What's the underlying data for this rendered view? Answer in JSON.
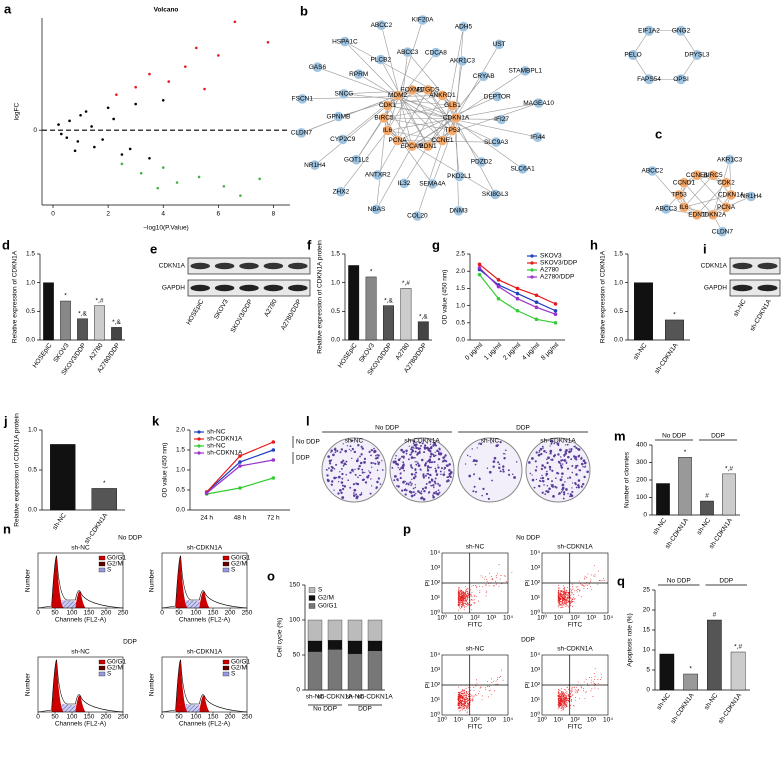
{
  "chart_data": [
    {
      "type": "scatter",
      "panel": "a",
      "title": "Volcano",
      "xlabel": "−log10(P.Value)",
      "ylabel": "logFC",
      "xlim": [
        -0.4,
        8.6
      ],
      "xticks": [
        0,
        2,
        4,
        6,
        8
      ],
      "ylim": [
        -4,
        6
      ],
      "yticks": [
        0
      ],
      "hline": 0,
      "series": [
        {
          "color": "#000000",
          "x": [
            0.2,
            0.5,
            1,
            1.5,
            2,
            2.5,
            3,
            0.8,
            1.2,
            3.5,
            4,
            1.8,
            2.2,
            0.3,
            2.8,
            0.6,
            1.4,
            0.9
          ],
          "values": [
            0.3,
            -0.4,
            0.8,
            -0.9,
            1.2,
            -1.3,
            1.4,
            -1.1,
            1.0,
            -1.5,
            1.6,
            -0.5,
            0.6,
            -0.2,
            -1.0,
            0.5,
            0.2,
            -0.6
          ]
        },
        {
          "color": "#e41a1c",
          "x": [
            3,
            3.5,
            4.2,
            4.8,
            5.5,
            6,
            6.6,
            7.8,
            2.3,
            5.2
          ],
          "values": [
            2.3,
            3.0,
            2.6,
            3.4,
            2.2,
            4.0,
            5.8,
            4.7,
            1.9,
            4.4
          ]
        },
        {
          "color": "#4daf4a",
          "x": [
            2.5,
            3.2,
            4,
            4.5,
            5.3,
            6.2,
            6.8,
            7.5,
            3.8
          ],
          "values": [
            -1.8,
            -2.3,
            -2.0,
            -2.8,
            -2.5,
            -3.0,
            -3.5,
            -2.6,
            -3.1
          ]
        }
      ]
    },
    {
      "type": "bar",
      "panel": "d",
      "ylabel": "Relative expression of CDKN1A",
      "categories": [
        "HOSEpiC",
        "SKOV3",
        "SKOV3/DDP",
        "A2780",
        "A2780/DDP"
      ],
      "values": [
        1.0,
        0.68,
        0.37,
        0.6,
        0.22
      ],
      "annotations": [
        null,
        "*",
        "*,&",
        "*,#",
        "*,&"
      ],
      "colors": [
        "#111111",
        "#888888",
        "#555555",
        "#cccccc",
        "#444444"
      ],
      "ylim": [
        0,
        1.5
      ],
      "yticks": [
        {
          "value": 0,
          "label": "0.0"
        },
        {
          "value": 0.5,
          "label": "0.5"
        },
        {
          "value": 1,
          "label": "1.0"
        },
        {
          "value": 1.5,
          "label": "1.5"
        }
      ]
    },
    {
      "type": "bar",
      "panel": "f",
      "ylabel": "Relative expression of CDKN1A protein",
      "categories": [
        "HOSEpiC",
        "SKOV3",
        "SKOV3/DDP",
        "A2780",
        "A2780/DDP"
      ],
      "values": [
        1.3,
        1.1,
        0.6,
        0.9,
        0.32
      ],
      "annotations": [
        null,
        "*",
        "*,&",
        "*,#",
        "*,&"
      ],
      "colors": [
        "#111111",
        "#888888",
        "#555555",
        "#cccccc",
        "#444444"
      ],
      "ylim": [
        0,
        1.5
      ],
      "yticks": [
        {
          "value": 0,
          "label": "0.0"
        },
        {
          "value": 0.5,
          "label": "0.5"
        },
        {
          "value": 1,
          "label": "1.0"
        },
        {
          "value": 1.5,
          "label": "1.5"
        }
      ]
    },
    {
      "type": "line",
      "panel": "g",
      "ylabel": "OD value (450 nm)",
      "legend": "upper right",
      "categories": [
        "0 μg/ml",
        "1 μg/ml",
        "2 μg/ml",
        "4 μg/ml",
        "8 μg/ml"
      ],
      "series": [
        {
          "name": "SKOV3",
          "color": "#1f3fbf",
          "values": [
            2.05,
            1.6,
            1.35,
            1.1,
            0.85
          ]
        },
        {
          "name": "SKOV3/DDP",
          "color": "#e41a1c",
          "values": [
            2.2,
            1.75,
            1.5,
            1.3,
            1.05
          ]
        },
        {
          "name": "A2780",
          "color": "#33cc33",
          "values": [
            1.9,
            1.2,
            0.85,
            0.6,
            0.5
          ]
        },
        {
          "name": "A2780/DDP",
          "color": "#9933cc",
          "values": [
            2.1,
            1.55,
            1.2,
            0.95,
            0.75
          ]
        }
      ],
      "ylim": [
        0,
        2.5
      ],
      "yticks": [
        {
          "value": 0,
          "label": "0.0"
        },
        {
          "value": 0.5,
          "label": "0.5"
        },
        {
          "value": 1,
          "label": "1.0"
        },
        {
          "value": 1.5,
          "label": "1.5"
        },
        {
          "value": 2,
          "label": "2.0"
        },
        {
          "value": 2.5,
          "label": "2.5"
        }
      ]
    },
    {
      "type": "bar",
      "panel": "h",
      "ylabel": "Relative expression of CDKN1A",
      "categories": [
        "sh-NC",
        "sh-CDKN1A"
      ],
      "values": [
        1.0,
        0.35
      ],
      "annotations": [
        null,
        "*"
      ],
      "colors": [
        "#111111",
        "#555555"
      ],
      "ylim": [
        0,
        1.5
      ],
      "yticks": [
        {
          "value": 0,
          "label": "0.0"
        },
        {
          "value": 0.5,
          "label": "0.5"
        },
        {
          "value": 1,
          "label": "1.0"
        },
        {
          "value": 1.5,
          "label": "1.5"
        }
      ]
    },
    {
      "type": "bar",
      "panel": "j",
      "ylabel": "Relative expression of CDKN1A protein",
      "categories": [
        "sh-NC",
        "sh-CDKN1A"
      ],
      "values": [
        0.82,
        0.27
      ],
      "annotations": [
        null,
        "*"
      ],
      "colors": [
        "#111111",
        "#555555"
      ],
      "ylim": [
        0,
        1.0
      ],
      "yticks": [
        {
          "value": 0,
          "label": "0.0"
        },
        {
          "value": 0.5,
          "label": "0.5"
        },
        {
          "value": 1,
          "label": "1.0"
        }
      ]
    },
    {
      "type": "line",
      "panel": "k",
      "ylabel": "OD value (450 nm)",
      "legend": "upper left",
      "categories": [
        "24 h",
        "48 h",
        "72 h"
      ],
      "groups": [
        "No DDP",
        "DDP"
      ],
      "group_position": "right",
      "series": [
        {
          "name": "sh-NC",
          "color": "#1f3fbf",
          "values": [
            0.45,
            1.2,
            1.5
          ]
        },
        {
          "name": "sh-CDKN1A",
          "color": "#e41a1c",
          "values": [
            0.45,
            1.35,
            1.7
          ]
        },
        {
          "name": "sh-NC",
          "color": "#33cc33",
          "values": [
            0.4,
            0.55,
            0.8
          ]
        },
        {
          "name": "sh-CDKN1A",
          "color": "#9933cc",
          "values": [
            0.42,
            1.1,
            1.25
          ]
        }
      ],
      "ylim": [
        0,
        2
      ],
      "yticks": [
        {
          "value": 0,
          "label": "0.0"
        },
        {
          "value": 0.5,
          "label": "0.5"
        },
        {
          "value": 1,
          "label": "1.0"
        },
        {
          "value": 1.5,
          "label": "1.5"
        },
        {
          "value": 2,
          "label": "2.0"
        }
      ]
    },
    {
      "type": "bar",
      "panel": "m",
      "ylabel": "Number of clonnies",
      "categories": [
        "sh-NC",
        "sh-CDKN1A",
        "sh-NC",
        "sh-CDKN1A"
      ],
      "values": [
        180,
        330,
        80,
        235
      ],
      "annotations": [
        null,
        "*",
        "#",
        "*,#"
      ],
      "colors": [
        "#111111",
        "#999999",
        "#555555",
        "#cccccc"
      ],
      "groups": [
        "No DDP",
        "DDP"
      ],
      "group_position": "top",
      "ylim": [
        0,
        400
      ],
      "yticks": [
        0,
        100,
        200,
        300,
        400
      ]
    },
    {
      "type": "stacked_bar",
      "panel": "o",
      "ylabel": "Cell cycle (%)",
      "categories": [
        "sh-NC",
        "sh-CDKN1A",
        "sh-NC",
        "sh-CDKN1A"
      ],
      "groups": [
        "No DDP",
        "DDP"
      ],
      "group_position": "bottom",
      "series": [
        {
          "name": "G0/G1",
          "color": "#777777",
          "values": [
            55,
            58,
            52,
            56
          ]
        },
        {
          "name": "G2/M",
          "color": "#111111",
          "values": [
            15,
            13,
            18,
            14
          ]
        },
        {
          "name": "S",
          "color": "#bbbbbb",
          "values": [
            30,
            29,
            30,
            30
          ]
        }
      ],
      "ylim": [
        0,
        150
      ],
      "yticks": [
        0,
        50,
        100,
        150
      ]
    },
    {
      "type": "bar",
      "panel": "q",
      "ylabel": "Apoptosis rate (%)",
      "categories": [
        "sh-NC",
        "sh-CDKN1A",
        "sh-NC",
        "sh-CDKN1A"
      ],
      "values": [
        9,
        4,
        17.5,
        9.5
      ],
      "annotations": [
        null,
        "*",
        "#",
        "*,#"
      ],
      "colors": [
        "#111111",
        "#999999",
        "#555555",
        "#cccccc"
      ],
      "groups": [
        "No DDP",
        "DDP"
      ],
      "group_position": "top",
      "ylim": [
        0,
        25
      ],
      "yticks": [
        0,
        5,
        10,
        15,
        20,
        25
      ]
    }
  ],
  "network_b": {
    "panel": "b",
    "core_color": "#f4a86a",
    "outer_color": "#9ec3e0",
    "core_nodes": [
      "CDKN1A",
      "TP53",
      "CCNE1",
      "EDN1",
      "EPCAM",
      "PCNA",
      "IL6",
      "BIRC5",
      "CDK1",
      "MDM2",
      "FOXM1",
      "PTGDS",
      "ANKRD1",
      "GLB1"
    ],
    "outer_nodes": [
      "ADH5",
      "AKR1C3",
      "UST",
      "CRYAB",
      "STAMBPL1",
      "DEPTOR",
      "MAGEA10",
      "IFI27",
      "IFI44",
      "SLC9A3",
      "SLC6A1",
      "PDZD2",
      "SKI8GL3",
      "PKD2L1",
      "DNM3",
      "SEMA4A",
      "COL20",
      "IL32",
      "NBAS",
      "ANTXR2",
      "ZHX2",
      "GOT1L2",
      "NR1H4",
      "CYP2C9",
      "CLDN7",
      "GPNMB",
      "FSCN1",
      "SNCG",
      "GAS6",
      "RPRM",
      "HSPA1C",
      "PLCB2",
      "ABCC2",
      "ABCC3",
      "KIF20A",
      "CDCA8"
    ],
    "separate_nodes": [
      "DPYSL3",
      "OPSI",
      "FAPS54",
      "PELO",
      "EIF1A2",
      "GNG2"
    ]
  },
  "network_c": {
    "panel": "c",
    "core_color": "#f4a86a",
    "outer_color": "#9ec3e0",
    "core_nodes": [
      "CDKN1A",
      "PCNA",
      "CDKN2A",
      "EDN1",
      "IL6",
      "TP53",
      "CCND1",
      "CCNE1",
      "BIRC5",
      "CDK2"
    ],
    "outer_nodes": [
      "AKR1C3",
      "NR1H4",
      "CLDN7",
      "ABCC3",
      "ABCC2"
    ]
  },
  "blot_e": {
    "panel": "e",
    "rows": [
      "CDKN1A",
      "GAPDH"
    ],
    "lanes": [
      "HOSEpiC",
      "SKOV3",
      "SKOV3/DDP",
      "A2780",
      "A2780/DDP"
    ]
  },
  "blot_i": {
    "panel": "i",
    "rows": [
      "CDKN1A",
      "GAPDH"
    ],
    "lanes": [
      "sh-NC",
      "sh-CDKN1A"
    ]
  },
  "colony_l": {
    "panel": "l",
    "groups": [
      "No DDP",
      "DDP"
    ],
    "lanes": [
      "sh-NC",
      "sh-CDKN1A",
      "sh-NC",
      "sh-CDKN1A"
    ]
  },
  "cell_cycle_n": {
    "panel": "n",
    "groups": [
      "No DDP",
      "DDP"
    ],
    "samples": [
      "sh-NC",
      "sh-CDKN1A",
      "sh-NC",
      "sh-CDKN1A"
    ],
    "legend": [
      "G0/G1",
      "G2/M",
      "S"
    ],
    "legend_colors": [
      "#cc0000",
      "#660000",
      "#9999dd"
    ],
    "xlabel": "Channels (FL2-A)",
    "ylabel": "Number",
    "xticks": [
      0,
      50,
      100,
      150,
      200,
      250
    ]
  },
  "flow_p": {
    "panel": "p",
    "groups": [
      "No DDP",
      "DDP"
    ],
    "samples": [
      "sh-NC",
      "sh-CDKN1A",
      "sh-NC",
      "sh-CDKN1A"
    ],
    "xlabel": "FITC",
    "ylabel": "PI",
    "ticks": [
      "10⁰",
      "10¹",
      "10²",
      "10³",
      "10⁴"
    ]
  }
}
